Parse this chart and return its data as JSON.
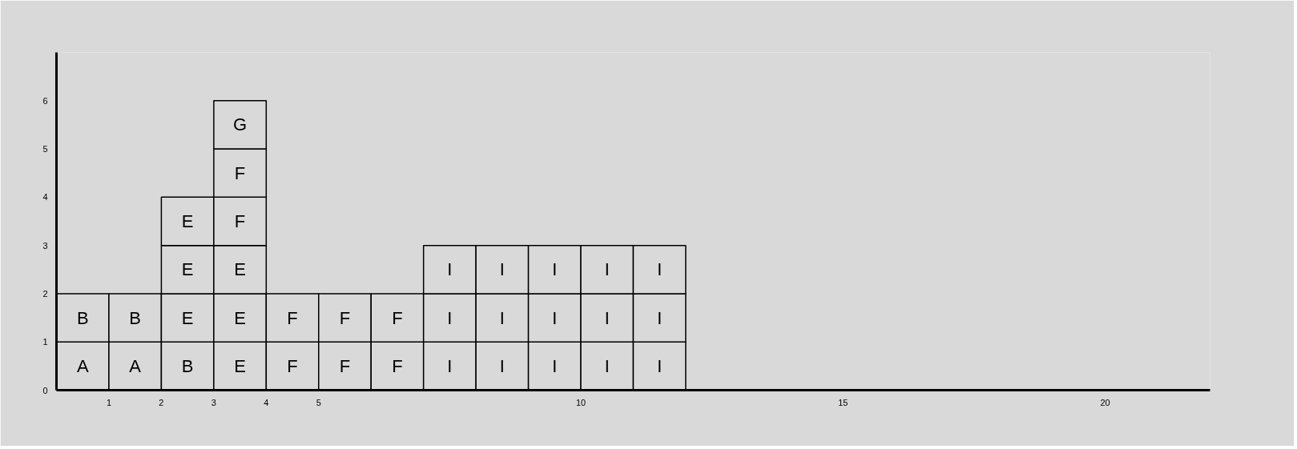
{
  "chart_data": {
    "type": "bar",
    "stacked": true,
    "x": [
      0.5,
      1.5,
      2.5,
      3.5,
      4.5,
      5.5,
      6.5,
      7.5,
      8.5,
      9.5,
      10.5,
      11.5
    ],
    "xlim": [
      0,
      22
    ],
    "xticks": [
      1,
      2,
      3,
      4,
      5,
      10,
      15,
      20
    ],
    "ylim": [
      0,
      7
    ],
    "yticks": [
      0,
      1,
      2,
      3,
      4,
      5,
      6
    ],
    "series": [
      {
        "color": "#d9d9d9",
        "values": [
          1,
          1,
          1,
          1,
          1,
          1,
          1,
          1,
          1,
          1,
          1,
          1
        ],
        "value_labels": [
          "A",
          "A",
          "B",
          "E",
          "F",
          "F",
          "F",
          "I",
          "I",
          "I",
          "I",
          "I"
        ]
      },
      {
        "color": "#d9d9d9",
        "values": [
          1,
          1,
          1,
          1,
          1,
          1,
          1,
          1,
          1,
          1,
          1,
          1
        ],
        "value_labels": [
          "B",
          "B",
          "E",
          "E",
          "F",
          "F",
          "F",
          "I",
          "I",
          "I",
          "I",
          "I"
        ]
      },
      {
        "color": "#d9d9d9",
        "values": [
          null,
          null,
          1,
          1,
          null,
          null,
          null,
          1,
          1,
          1,
          1,
          1
        ],
        "value_labels": [
          null,
          null,
          "E",
          "E",
          null,
          null,
          null,
          "I",
          "I",
          "I",
          "I",
          "I"
        ]
      },
      {
        "color": "#d9d9d9",
        "values": [
          null,
          null,
          1,
          1,
          null,
          null,
          null,
          null,
          null,
          null,
          null,
          null
        ],
        "value_labels": [
          null,
          null,
          "E",
          "F",
          null,
          null,
          null,
          null,
          null,
          null,
          null,
          null
        ]
      },
      {
        "color": "#d9d9d9",
        "values": [
          null,
          null,
          null,
          1,
          null,
          null,
          null,
          null,
          null,
          null,
          null,
          null
        ],
        "value_labels": [
          null,
          null,
          null,
          "F",
          null,
          null,
          null,
          null,
          null,
          null,
          null,
          null
        ]
      },
      {
        "color": "#d9d9d9",
        "values": [
          null,
          null,
          null,
          1,
          null,
          null,
          null,
          null,
          null,
          null,
          null,
          null
        ],
        "value_labels": [
          null,
          null,
          null,
          "G",
          null,
          null,
          null,
          null,
          null,
          null,
          null,
          null
        ]
      }
    ],
    "grid": false
  }
}
